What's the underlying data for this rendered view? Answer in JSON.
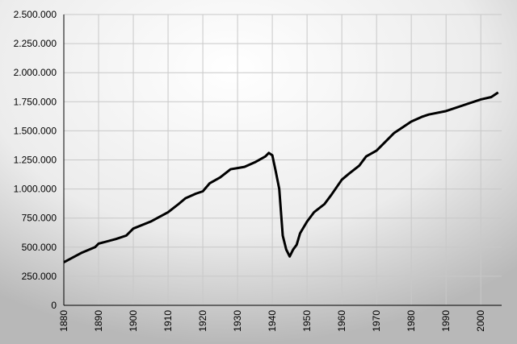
{
  "chart_data": {
    "type": "line",
    "x": [
      1880,
      1885,
      1889,
      1890,
      1895,
      1898,
      1900,
      1905,
      1910,
      1913,
      1915,
      1918,
      1920,
      1922,
      1925,
      1928,
      1930,
      1932,
      1935,
      1938,
      1939,
      1940,
      1941,
      1942,
      1943,
      1944,
      1945,
      1946,
      1947,
      1948,
      1950,
      1952,
      1955,
      1957,
      1960,
      1962,
      1965,
      1967,
      1970,
      1972,
      1975,
      1978,
      1980,
      1983,
      1985,
      1990,
      1995,
      2000,
      2003,
      2005
    ],
    "series": [
      {
        "color": "#000000",
        "values": [
          370000,
          450000,
          500000,
          530000,
          570000,
          600000,
          660000,
          720000,
          800000,
          870000,
          920000,
          960000,
          980000,
          1050000,
          1100000,
          1170000,
          1180000,
          1190000,
          1230000,
          1280000,
          1310000,
          1290000,
          1150000,
          1000000,
          600000,
          480000,
          420000,
          480000,
          520000,
          620000,
          720000,
          800000,
          870000,
          950000,
          1080000,
          1130000,
          1200000,
          1280000,
          1330000,
          1390000,
          1480000,
          1540000,
          1580000,
          1620000,
          1640000,
          1670000,
          1720000,
          1770000,
          1790000,
          1830000
        ]
      }
    ],
    "xlim": [
      1880,
      2006
    ],
    "xticks": [
      1880,
      1890,
      1900,
      1910,
      1920,
      1930,
      1940,
      1950,
      1960,
      1970,
      1980,
      1990,
      2000
    ],
    "ylim": [
      0,
      2500000
    ],
    "yticks": [
      0,
      {
        "value": 250000,
        "label": "250.000"
      },
      {
        "value": 500000,
        "label": "500.000"
      },
      {
        "value": 750000,
        "label": "750.000"
      },
      {
        "value": 1000000,
        "label": "1.000.000"
      },
      {
        "value": 1250000,
        "label": "1.250.000"
      },
      {
        "value": 1500000,
        "label": "1.500.000"
      },
      {
        "value": 1750000,
        "label": "1.750.000"
      },
      {
        "value": 2000000,
        "label": "2.000.000"
      },
      {
        "value": 2250000,
        "label": "2.250.000"
      },
      {
        "value": 2500000,
        "label": "2.500.000"
      }
    ],
    "grid": true
  }
}
